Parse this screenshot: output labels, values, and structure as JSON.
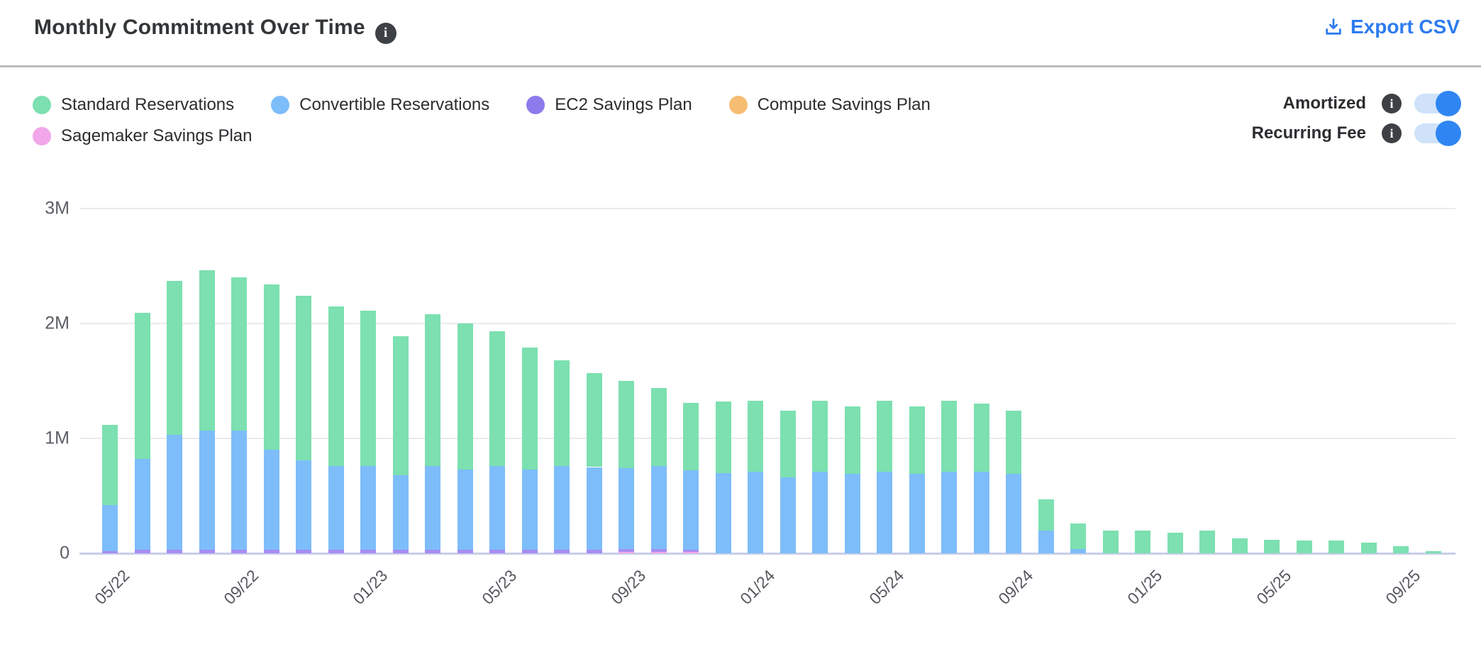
{
  "header": {
    "title": "Monthly Commitment Over Time",
    "title_info_icon": "info-icon",
    "export_label": "Export CSV"
  },
  "legend": {
    "items": [
      {
        "label": "Standard Reservations",
        "color": "#7ce0b0"
      },
      {
        "label": "Convertible Reservations",
        "color": "#7dbdfa"
      },
      {
        "label": "EC2 Savings Plan",
        "color": "#8d7aec"
      },
      {
        "label": "Compute Savings Plan",
        "color": "#f6bd72"
      },
      {
        "label": "Sagemaker Savings Plan",
        "color": "#f1a7e9"
      }
    ]
  },
  "toggles": [
    {
      "label": "Amortized",
      "state": "on"
    },
    {
      "label": "Recurring Fee",
      "state": "on"
    }
  ],
  "colors": {
    "accent_blue": "#2e7cf0",
    "toggle_track": "#cfe2fa",
    "toggle_knob": "#2f86f2",
    "gridline": "#eaeaec",
    "baseline": "#c7cde9"
  },
  "chart_data": {
    "type": "bar",
    "stacked": true,
    "title": "Monthly Commitment Over Time",
    "xlabel": "",
    "ylabel": "",
    "ylim_millions": [
      0,
      3
    ],
    "y_ticks": [
      {
        "value": 0,
        "label": "0"
      },
      {
        "value": 1,
        "label": "1M"
      },
      {
        "value": 2,
        "label": "2M"
      },
      {
        "value": 3,
        "label": "3M"
      }
    ],
    "x": [
      "05/22",
      "06/22",
      "07/22",
      "08/22",
      "09/22",
      "10/22",
      "11/22",
      "12/22",
      "01/23",
      "02/23",
      "03/23",
      "04/23",
      "05/23",
      "06/23",
      "07/23",
      "08/23",
      "09/23",
      "10/23",
      "11/23",
      "12/23",
      "01/24",
      "02/24",
      "03/24",
      "04/24",
      "05/24",
      "06/24",
      "07/24",
      "08/24",
      "09/24",
      "10/24",
      "11/24",
      "12/24",
      "01/25",
      "02/25",
      "03/25",
      "04/25",
      "05/25",
      "06/25",
      "07/25",
      "08/25",
      "09/25",
      "10/25"
    ],
    "x_tick_every": 4,
    "values_unit": "millions",
    "stack_order_note": "series listed bottom-to-top",
    "series": [
      {
        "name": "Sagemaker Savings Plan",
        "color": "#f1a7e9",
        "values": [
          0,
          0,
          0,
          0,
          0,
          0,
          0,
          0,
          0,
          0,
          0,
          0,
          0,
          0,
          0,
          0,
          0.01,
          0.01,
          0.01,
          0,
          0,
          0,
          0,
          0,
          0,
          0,
          0,
          0,
          0,
          0,
          0,
          0,
          0,
          0,
          0,
          0,
          0,
          0,
          0,
          0,
          0,
          0
        ]
      },
      {
        "name": "Compute Savings Plan",
        "color": "#f6bd72",
        "values": [
          0,
          0,
          0,
          0,
          0,
          0,
          0,
          0,
          0,
          0,
          0,
          0,
          0,
          0,
          0,
          0,
          0,
          0,
          0,
          0,
          0,
          0,
          0,
          0,
          0,
          0,
          0,
          0,
          0,
          0,
          0,
          0,
          0,
          0,
          0,
          0,
          0,
          0,
          0,
          0,
          0,
          0
        ]
      },
      {
        "name": "EC2 Savings Plan",
        "color": "#a78cf2",
        "values": [
          0.02,
          0.03,
          0.03,
          0.03,
          0.03,
          0.03,
          0.03,
          0.03,
          0.03,
          0.03,
          0.03,
          0.03,
          0.03,
          0.03,
          0.03,
          0.03,
          0.03,
          0.03,
          0.02,
          0,
          0,
          0,
          0,
          0,
          0,
          0,
          0,
          0,
          0,
          0,
          0,
          0,
          0,
          0,
          0,
          0,
          0,
          0,
          0,
          0,
          0,
          0
        ]
      },
      {
        "name": "Convertible Reservations",
        "color": "#7dbdfa",
        "values": [
          0.4,
          0.79,
          1.0,
          1.04,
          1.04,
          0.87,
          0.78,
          0.73,
          0.73,
          0.65,
          0.73,
          0.7,
          0.73,
          0.7,
          0.73,
          0.72,
          0.7,
          0.72,
          0.69,
          0.7,
          0.71,
          0.66,
          0.71,
          0.69,
          0.71,
          0.69,
          0.71,
          0.71,
          0.69,
          0.2,
          0.04,
          0,
          0,
          0,
          0,
          0,
          0,
          0,
          0,
          0,
          0,
          0
        ]
      },
      {
        "name": "Standard Reservations",
        "color": "#7ce0b0",
        "values": [
          0.7,
          1.27,
          1.34,
          1.39,
          1.33,
          1.44,
          1.43,
          1.39,
          1.35,
          1.21,
          1.32,
          1.27,
          1.17,
          1.06,
          0.92,
          0.82,
          0.76,
          0.68,
          0.59,
          0.62,
          0.62,
          0.58,
          0.62,
          0.59,
          0.62,
          0.59,
          0.62,
          0.59,
          0.55,
          0.27,
          0.22,
          0.2,
          0.2,
          0.18,
          0.2,
          0.13,
          0.12,
          0.11,
          0.11,
          0.09,
          0.06,
          0.02
        ]
      }
    ],
    "legend_position": "top-left",
    "grid": true
  }
}
